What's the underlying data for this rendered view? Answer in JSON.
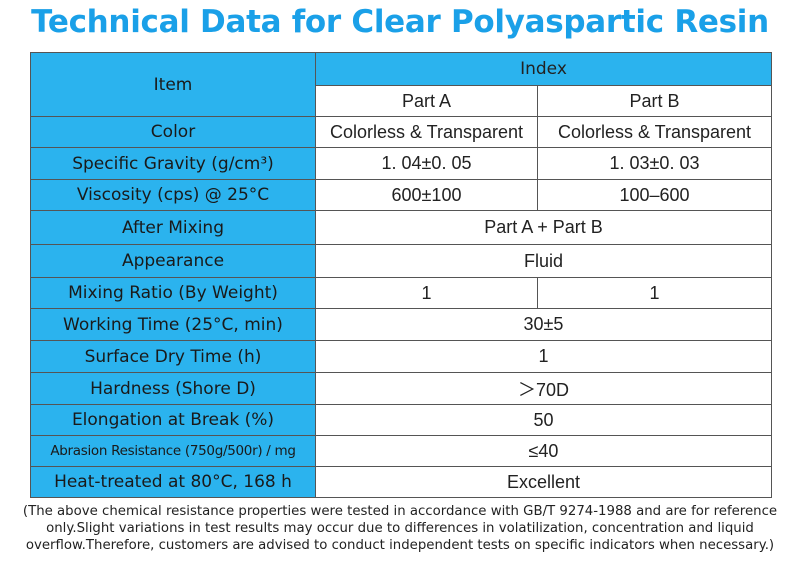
{
  "title": "Technical Data for Clear Polyaspartic Resin",
  "table": {
    "item_header": "Item",
    "index_header": "Index",
    "part_a": "Part A",
    "part_b": "Part B",
    "rows": [
      {
        "label": "Color",
        "a": "Colorless & Transparent",
        "b": "Colorless & Transparent"
      },
      {
        "label": "Specific Gravity (g/cm³)",
        "a": "1. 04±0. 05",
        "b": "1. 03±0. 03"
      },
      {
        "label": "Viscosity (cps) @ 25°C",
        "a": "600±100",
        "b": "100–600"
      },
      {
        "label": "After Mixing",
        "value": "Part A + Part B"
      },
      {
        "label": "Appearance",
        "value": "Fluid"
      },
      {
        "label": "Mixing Ratio (By Weight)",
        "a": "1",
        "b": "1"
      },
      {
        "label": "Working Time (25°C, min)",
        "value": "30±5"
      },
      {
        "label": "Surface Dry Time (h)",
        "value": "1"
      },
      {
        "label": "Hardness (Shore D)",
        "value": "＞70D"
      },
      {
        "label": "Elongation at Break (%)",
        "value": "50"
      },
      {
        "label": "Abrasion Resistance (750g/500r) / mg",
        "value": "≤40"
      },
      {
        "label": "Heat-treated at 80°C, 168 h",
        "value": "Excellent"
      }
    ]
  },
  "note": "(The above chemical resistance properties were tested in accordance with GB/T 9274-1988 and are for reference only.Slight variations in test results may occur due to differences in volatilization, concentration and liquid overflow.Therefore, customers are advised to conduct independent tests on specific indicators when necessary.)"
}
